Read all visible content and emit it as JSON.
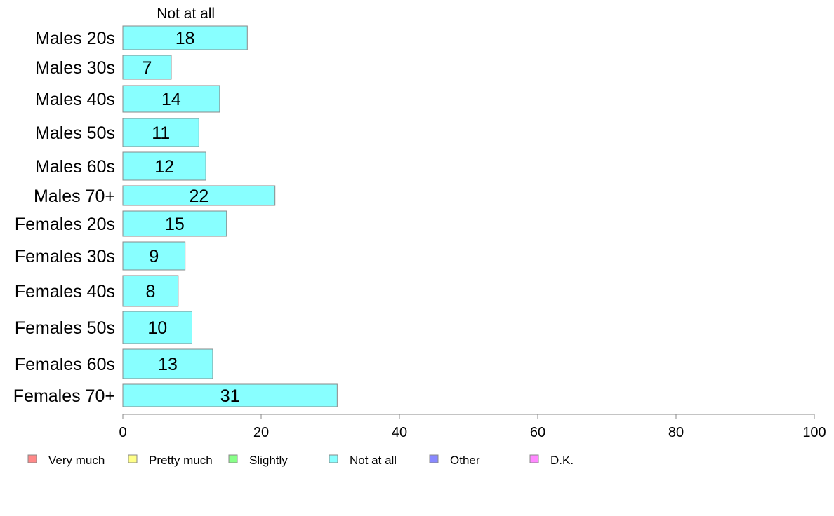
{
  "chart_data": {
    "type": "bar",
    "orientation": "horizontal",
    "stacked": true,
    "categories": [
      "Males 20s",
      "Males 30s",
      "Males 40s",
      "Males 50s",
      "Males 60s",
      "Males 70+",
      "Females 20s",
      "Females 30s",
      "Females 40s",
      "Females 50s",
      "Females 60s",
      "Females 70+"
    ],
    "series": [
      {
        "name": "Not at all",
        "color": "#88ffff",
        "values": [
          18,
          7,
          14,
          11,
          12,
          22,
          15,
          9,
          8,
          10,
          13,
          31
        ]
      }
    ],
    "data_labels": [
      "18",
      "7",
      "14",
      "11",
      "12",
      "22",
      "15",
      "9",
      "8",
      "10",
      "13",
      "31"
    ],
    "series_header": "Not at all",
    "xlim": [
      0,
      100
    ],
    "xticks": [
      0,
      20,
      40,
      60,
      80,
      100
    ],
    "xtick_labels": [
      "0",
      "20",
      "40",
      "60",
      "80",
      "100"
    ],
    "grid": false,
    "legend_position": "bottom",
    "legend": [
      {
        "label": "Very much",
        "color": "#ff8888"
      },
      {
        "label": "Pretty much",
        "color": "#ffff88"
      },
      {
        "label": "Slightly",
        "color": "#88ff88"
      },
      {
        "label": "Not at all",
        "color": "#88ffff"
      },
      {
        "label": "Other",
        "color": "#8888ff"
      },
      {
        "label": "D.K.",
        "color": "#ff88ff"
      }
    ]
  }
}
